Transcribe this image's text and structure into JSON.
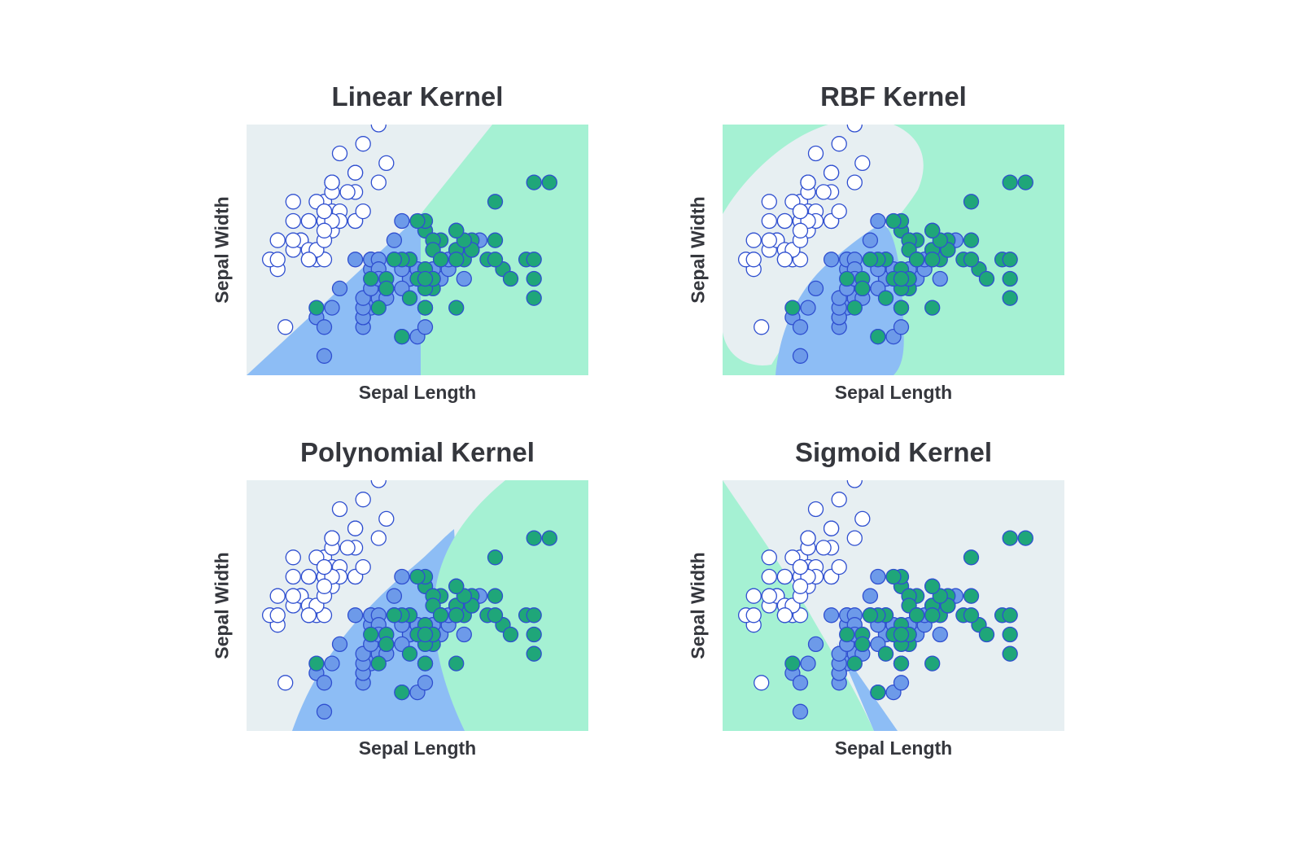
{
  "colors": {
    "white_region": "#e7eff2",
    "blue_region": "#8dbdf5",
    "green_region": "#a5f1d3",
    "white_point_fill": "#ffffff",
    "blue_point_fill": "#6d9ae9",
    "green_point_fill": "#1fa679",
    "point_stroke": "#2f4fd0"
  },
  "chart_data": [
    {
      "type": "scatter",
      "title": "Linear Kernel",
      "xlabel": "Sepal Length",
      "ylabel": "Sepal Width",
      "decision_regions": "linear",
      "xlim": [
        4,
        8.4
      ],
      "ylim": [
        1.8,
        4.4
      ],
      "grid": false,
      "legend": "none"
    },
    {
      "type": "scatter",
      "title": "RBF Kernel",
      "xlabel": "Sepal Length",
      "ylabel": "Sepal Width",
      "decision_regions": "rbf",
      "xlim": [
        4,
        8.4
      ],
      "ylim": [
        1.8,
        4.4
      ],
      "grid": false,
      "legend": "none"
    },
    {
      "type": "scatter",
      "title": "Polynomial Kernel",
      "xlabel": "Sepal Length",
      "ylabel": "Sepal Width",
      "decision_regions": "polynomial",
      "xlim": [
        4,
        8.4
      ],
      "ylim": [
        1.8,
        4.4
      ],
      "grid": false,
      "legend": "none"
    },
    {
      "type": "scatter",
      "title": "Sigmoid Kernel",
      "xlabel": "Sepal Length",
      "ylabel": "Sepal Width",
      "decision_regions": "sigmoid",
      "xlim": [
        4,
        8.4
      ],
      "ylim": [
        1.8,
        4.4
      ],
      "grid": false,
      "legend": "none"
    }
  ],
  "points": {
    "setosa": [
      [
        5.1,
        3.5
      ],
      [
        4.9,
        3.0
      ],
      [
        4.7,
        3.2
      ],
      [
        4.6,
        3.1
      ],
      [
        5.0,
        3.6
      ],
      [
        5.4,
        3.9
      ],
      [
        4.6,
        3.4
      ],
      [
        5.0,
        3.4
      ],
      [
        4.4,
        2.9
      ],
      [
        4.9,
        3.1
      ],
      [
        5.4,
        3.7
      ],
      [
        4.8,
        3.4
      ],
      [
        4.8,
        3.0
      ],
      [
        4.3,
        3.0
      ],
      [
        5.8,
        4.0
      ],
      [
        5.7,
        4.4
      ],
      [
        5.4,
        3.9
      ],
      [
        5.1,
        3.5
      ],
      [
        5.7,
        3.8
      ],
      [
        5.1,
        3.8
      ],
      [
        5.4,
        3.4
      ],
      [
        5.1,
        3.7
      ],
      [
        4.6,
        3.6
      ],
      [
        5.1,
        3.3
      ],
      [
        4.8,
        3.4
      ],
      [
        5.0,
        3.0
      ],
      [
        5.0,
        3.4
      ],
      [
        5.2,
        3.5
      ],
      [
        5.2,
        3.4
      ],
      [
        4.7,
        3.2
      ],
      [
        4.8,
        3.1
      ],
      [
        5.4,
        3.4
      ],
      [
        5.2,
        4.1
      ],
      [
        5.5,
        4.2
      ],
      [
        4.9,
        3.1
      ],
      [
        5.0,
        3.2
      ],
      [
        5.5,
        3.5
      ],
      [
        4.9,
        3.6
      ],
      [
        4.4,
        3.0
      ],
      [
        5.1,
        3.4
      ],
      [
        5.0,
        3.5
      ],
      [
        4.5,
        2.3
      ],
      [
        4.4,
        3.2
      ],
      [
        5.0,
        3.5
      ],
      [
        5.1,
        3.8
      ],
      [
        4.8,
        3.0
      ],
      [
        5.1,
        3.8
      ],
      [
        4.6,
        3.2
      ],
      [
        5.3,
        3.7
      ],
      [
        5.0,
        3.3
      ]
    ],
    "versicolor": [
      [
        7.0,
        3.2
      ],
      [
        6.4,
        3.2
      ],
      [
        6.9,
        3.1
      ],
      [
        5.5,
        2.3
      ],
      [
        6.5,
        2.8
      ],
      [
        5.7,
        2.8
      ],
      [
        6.3,
        3.3
      ],
      [
        4.9,
        2.4
      ],
      [
        6.6,
        2.9
      ],
      [
        5.2,
        2.7
      ],
      [
        5.0,
        2.0
      ],
      [
        5.9,
        3.0
      ],
      [
        6.0,
        2.2
      ],
      [
        6.1,
        2.9
      ],
      [
        5.6,
        2.9
      ],
      [
        6.7,
        3.1
      ],
      [
        5.6,
        3.0
      ],
      [
        5.8,
        2.7
      ],
      [
        6.2,
        2.2
      ],
      [
        5.6,
        2.5
      ],
      [
        5.9,
        3.2
      ],
      [
        6.1,
        2.8
      ],
      [
        6.3,
        2.5
      ],
      [
        6.1,
        2.8
      ],
      [
        6.4,
        2.9
      ],
      [
        6.6,
        3.0
      ],
      [
        6.8,
        2.8
      ],
      [
        6.7,
        3.0
      ],
      [
        6.0,
        2.9
      ],
      [
        5.7,
        2.6
      ],
      [
        5.5,
        2.4
      ],
      [
        5.5,
        2.4
      ],
      [
        5.8,
        2.7
      ],
      [
        6.0,
        2.7
      ],
      [
        5.4,
        3.0
      ],
      [
        6.0,
        3.4
      ],
      [
        6.7,
        3.1
      ],
      [
        6.3,
        2.3
      ],
      [
        5.6,
        3.0
      ],
      [
        5.5,
        2.5
      ],
      [
        5.5,
        2.6
      ],
      [
        6.1,
        3.0
      ],
      [
        5.8,
        2.6
      ],
      [
        5.0,
        2.3
      ],
      [
        5.6,
        2.7
      ],
      [
        5.7,
        3.0
      ],
      [
        5.7,
        2.9
      ],
      [
        6.2,
        2.9
      ],
      [
        5.1,
        2.5
      ],
      [
        5.7,
        2.8
      ]
    ],
    "virginica": [
      [
        6.3,
        3.3
      ],
      [
        5.8,
        2.7
      ],
      [
        7.1,
        3.0
      ],
      [
        6.3,
        2.9
      ],
      [
        6.5,
        3.0
      ],
      [
        7.6,
        3.0
      ],
      [
        4.9,
        2.5
      ],
      [
        7.3,
        2.9
      ],
      [
        6.7,
        2.5
      ],
      [
        7.2,
        3.6
      ],
      [
        6.5,
        3.2
      ],
      [
        6.4,
        2.7
      ],
      [
        6.8,
        3.0
      ],
      [
        5.7,
        2.5
      ],
      [
        5.8,
        2.8
      ],
      [
        6.4,
        3.2
      ],
      [
        6.5,
        3.0
      ],
      [
        7.7,
        3.8
      ],
      [
        7.7,
        2.6
      ],
      [
        6.0,
        2.2
      ],
      [
        6.9,
        3.2
      ],
      [
        5.6,
        2.8
      ],
      [
        7.7,
        2.8
      ],
      [
        6.3,
        2.7
      ],
      [
        6.7,
        3.3
      ],
      [
        7.2,
        3.2
      ],
      [
        6.2,
        2.8
      ],
      [
        6.1,
        3.0
      ],
      [
        6.4,
        2.8
      ],
      [
        7.2,
        3.0
      ],
      [
        7.4,
        2.8
      ],
      [
        7.9,
        3.8
      ],
      [
        6.4,
        2.8
      ],
      [
        6.3,
        2.8
      ],
      [
        6.1,
        2.6
      ],
      [
        7.7,
        3.0
      ],
      [
        6.3,
        3.4
      ],
      [
        6.4,
        3.1
      ],
      [
        6.0,
        3.0
      ],
      [
        6.9,
        3.1
      ],
      [
        6.7,
        3.1
      ],
      [
        6.9,
        3.1
      ],
      [
        5.8,
        2.7
      ],
      [
        6.8,
        3.2
      ],
      [
        6.7,
        3.3
      ],
      [
        6.7,
        3.0
      ],
      [
        6.3,
        2.5
      ],
      [
        6.5,
        3.0
      ],
      [
        6.2,
        3.4
      ],
      [
        5.9,
        3.0
      ]
    ]
  }
}
